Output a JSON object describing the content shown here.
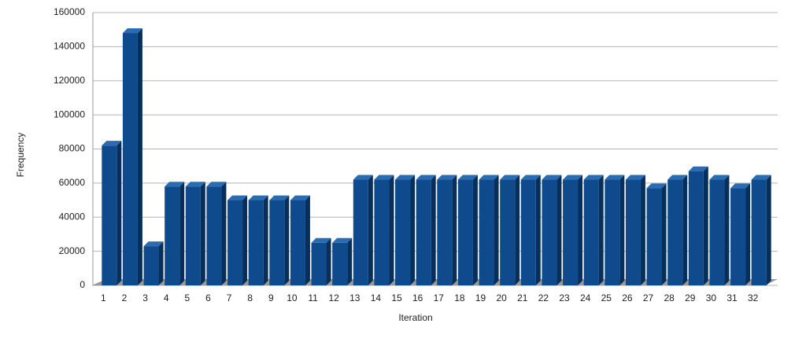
{
  "chart_data": {
    "type": "bar3d",
    "x_label": "Iteration",
    "y_label": "Frequency",
    "categories": [
      "1",
      "2",
      "3",
      "4",
      "5",
      "6",
      "7",
      "8",
      "9",
      "10",
      "11",
      "12",
      "13",
      "14",
      "15",
      "16",
      "17",
      "18",
      "19",
      "20",
      "21",
      "22",
      "23",
      "24",
      "25",
      "26",
      "27",
      "28",
      "29",
      "30",
      "31",
      "32"
    ],
    "values": [
      82000,
      148000,
      23000,
      58000,
      58000,
      58000,
      50000,
      50000,
      50000,
      50000,
      25000,
      25000,
      62000,
      62000,
      62000,
      62000,
      62000,
      62000,
      62000,
      62000,
      62000,
      62000,
      62000,
      62000,
      62000,
      62000,
      57000,
      62000,
      67000,
      62000,
      57000,
      62000
    ],
    "color": "#0f4b8c",
    "ylim": [
      0,
      160000
    ],
    "yticks": [
      0,
      20000,
      40000,
      60000,
      80000,
      100000,
      120000,
      140000,
      160000
    ],
    "grid": true
  }
}
